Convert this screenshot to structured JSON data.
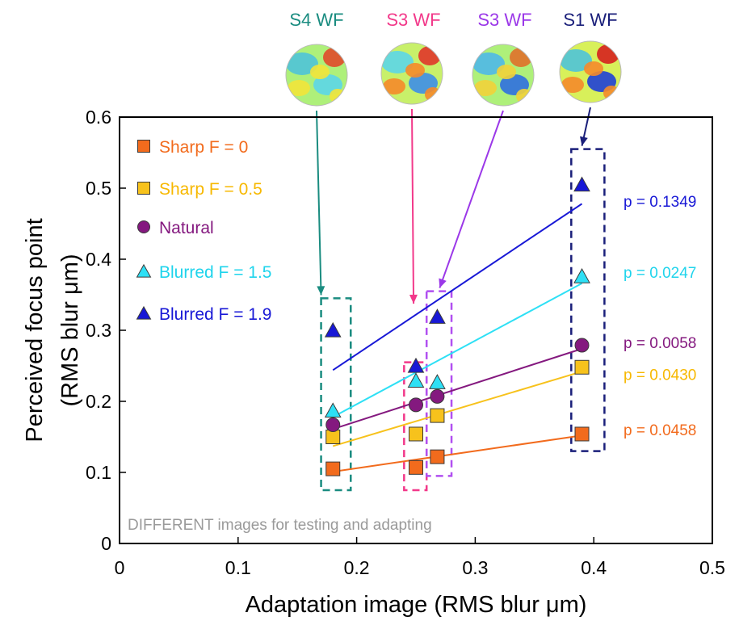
{
  "chart_data": {
    "type": "scatter",
    "xlabel": "Adaptation image (RMS blur μm)",
    "ylabel_line1": "Perceived focus point",
    "ylabel_line2": "(RMS blur μm)",
    "xlim": [
      0,
      0.5
    ],
    "ylim": [
      0,
      0.6
    ],
    "xticks": [
      0,
      0.1,
      0.2,
      0.3,
      0.4,
      0.5
    ],
    "xtick_labels": [
      "0",
      "0.1",
      "0.2",
      "0.3",
      "0.4",
      "0.5"
    ],
    "yticks": [
      0,
      0.1,
      0.2,
      0.3,
      0.4,
      0.5,
      0.6
    ],
    "ytick_labels": [
      "0",
      "0.1",
      "0.2",
      "0.3",
      "0.4",
      "0.5",
      "0.6"
    ],
    "grid": false,
    "legend_position": "top-left",
    "footnote": "DIFFERENT images for testing and adapting",
    "series": [
      {
        "name": "Sharp F = 0",
        "marker": "square",
        "color": "#f26b1d",
        "text_color": "#f26b1d",
        "line_color": "#f26b1d",
        "x": [
          0.18,
          0.25,
          0.268,
          0.39
        ],
        "y": [
          0.105,
          0.107,
          0.122,
          0.154
        ],
        "fit": [
          [
            0.18,
            0.101
          ],
          [
            0.39,
            0.152
          ]
        ],
        "p_label": "p = 0.0458",
        "p_y": 0.16
      },
      {
        "name": "Sharp F = 0.5",
        "marker": "square",
        "color": "#f7c21c",
        "text_color": "#f7b800",
        "line_color": "#f7c21c",
        "x": [
          0.18,
          0.25,
          0.268,
          0.39
        ],
        "y": [
          0.15,
          0.154,
          0.18,
          0.248
        ],
        "fit": [
          [
            0.18,
            0.137
          ],
          [
            0.39,
            0.242
          ]
        ],
        "p_label": "p = 0.0430",
        "p_y": 0.238
      },
      {
        "name": "Natural",
        "marker": "circle",
        "color": "#84197f",
        "text_color": "#84197f",
        "line_color": "#84197f",
        "x": [
          0.18,
          0.25,
          0.268,
          0.39
        ],
        "y": [
          0.167,
          0.195,
          0.207,
          0.279
        ],
        "fit": [
          [
            0.18,
            0.161
          ],
          [
            0.39,
            0.274
          ]
        ],
        "p_label": "p = 0.0058",
        "p_y": 0.283
      },
      {
        "name": "Blurred F = 1.5",
        "marker": "triangle",
        "color": "#2ee0f5",
        "text_color": "#1fd4ec",
        "line_color": "#2ee0f5",
        "x": [
          0.18,
          0.25,
          0.268,
          0.39
        ],
        "y": [
          0.187,
          0.229,
          0.227,
          0.376
        ],
        "fit": [
          [
            0.18,
            0.178
          ],
          [
            0.39,
            0.366
          ]
        ],
        "p_label": "p = 0.0247",
        "p_y": 0.382
      },
      {
        "name": "Blurred F = 1.9",
        "marker": "triangle",
        "color": "#1818d6",
        "text_color": "#1818d6",
        "line_color": "#1818d6",
        "x": [
          0.18,
          0.25,
          0.268,
          0.39
        ],
        "y": [
          0.3,
          0.25,
          0.319,
          0.505
        ],
        "fit": [
          [
            0.18,
            0.244
          ],
          [
            0.39,
            0.478
          ]
        ],
        "p_label": "p = 0.1349",
        "p_y": 0.482
      }
    ],
    "wavefronts": [
      {
        "label": "S4 WF",
        "color": "#1a8c80",
        "target_x": 0.17,
        "target_y": 0.345,
        "palette": [
          "#5cd6e8",
          "#4fc3d8",
          "#aef07a",
          "#f2e43a",
          "#e04a2a"
        ]
      },
      {
        "label": "S3 WF",
        "color": "#f2398a",
        "target_x": 0.248,
        "target_y": 0.333,
        "palette": [
          "#3d8ee8",
          "#5cd6e8",
          "#c8f06a",
          "#f58a2a",
          "#e0352a"
        ]
      },
      {
        "label": "S3 WF",
        "color": "#9b38e8",
        "target_x": 0.27,
        "target_y": 0.355,
        "palette": [
          "#2f6fe0",
          "#4fb8e8",
          "#aef07a",
          "#f2d23a",
          "#e0702a"
        ]
      },
      {
        "label": "S1 WF",
        "color": "#1a1f7a",
        "target_x": 0.39,
        "target_y": 0.555,
        "palette": [
          "#1f3fd6",
          "#4fc3d8",
          "#d8f05a",
          "#f58a2a",
          "#d6201e"
        ]
      }
    ],
    "groups": [
      {
        "color": "#1a8c80",
        "x_range": [
          0.17,
          0.195
        ],
        "y_range": [
          0.075,
          0.345
        ]
      },
      {
        "color": "#f2398a",
        "x_range": [
          0.24,
          0.259
        ],
        "y_range": [
          0.075,
          0.255
        ]
      },
      {
        "color": "#b14ff0",
        "x_range": [
          0.259,
          0.28
        ],
        "y_range": [
          0.095,
          0.355
        ]
      },
      {
        "color": "#1a1f7a",
        "x_range": [
          0.381,
          0.409
        ],
        "y_range": [
          0.13,
          0.555
        ]
      }
    ]
  }
}
